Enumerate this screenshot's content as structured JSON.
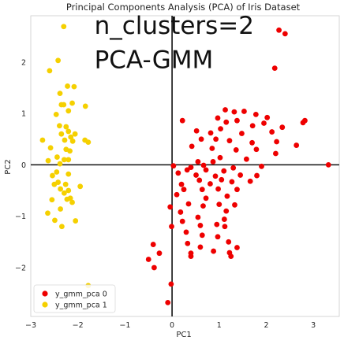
{
  "chart_data": {
    "type": "scatter",
    "title": "Principal Components Analysis (PCA) of Iris Dataset",
    "xlabel": "PC1",
    "ylabel": "PC2",
    "xlim": [
      -3,
      3.55
    ],
    "ylim": [
      -2.95,
      2.9
    ],
    "xticks": [
      -3,
      -2,
      -1,
      0,
      1,
      2,
      3
    ],
    "yticks": [
      -2,
      -1,
      0,
      1,
      2
    ],
    "grid": false,
    "reference_lines": {
      "x": 0,
      "y": 0,
      "color": "#111111"
    },
    "annotations": [
      {
        "text": "n_clusters=2",
        "x": -1.65,
        "y": 2.55
      },
      {
        "text": "PCA-GMM",
        "x": -1.65,
        "y": 1.88
      }
    ],
    "legend_position": "lower-left",
    "series": [
      {
        "name": "y_gmm_pca 0",
        "color": "#ee0000",
        "points": [
          [
            2.27,
            2.62
          ],
          [
            2.4,
            2.55
          ],
          [
            2.18,
            1.88
          ],
          [
            1.13,
            1.07
          ],
          [
            1.32,
            1.03
          ],
          [
            1.53,
            1.04
          ],
          [
            1.78,
            0.98
          ],
          [
            2.02,
            0.92
          ],
          [
            0.97,
            0.91
          ],
          [
            0.22,
            0.86
          ],
          [
            1.15,
            0.83
          ],
          [
            1.38,
            0.86
          ],
          [
            1.71,
            0.76
          ],
          [
            1.95,
            0.81
          ],
          [
            2.34,
            0.73
          ],
          [
            2.78,
            0.82
          ],
          [
            2.82,
            0.86
          ],
          [
            0.52,
            0.66
          ],
          [
            1.03,
            0.7
          ],
          [
            0.82,
            0.62
          ],
          [
            1.48,
            0.61
          ],
          [
            2.12,
            0.64
          ],
          [
            0.62,
            0.5
          ],
          [
            0.93,
            0.5
          ],
          [
            1.22,
            0.47
          ],
          [
            1.7,
            0.43
          ],
          [
            2.22,
            0.45
          ],
          [
            0.42,
            0.36
          ],
          [
            0.85,
            0.32
          ],
          [
            1.36,
            0.29
          ],
          [
            1.79,
            0.3
          ],
          [
            2.64,
            0.38
          ],
          [
            2.2,
            0.22
          ],
          [
            1.02,
            0.14
          ],
          [
            1.58,
            0.11
          ],
          [
            0.55,
            0.06
          ],
          [
            0.87,
            0.06
          ],
          [
            0.03,
            -0.02
          ],
          [
            0.4,
            -0.05
          ],
          [
            0.67,
            -0.01
          ],
          [
            1.3,
            -0.06
          ],
          [
            0.32,
            -0.1
          ],
          [
            0.72,
            -0.1
          ],
          [
            1.1,
            -0.12
          ],
          [
            1.9,
            -0.03
          ],
          [
            0.13,
            -0.16
          ],
          [
            0.51,
            -0.2
          ],
          [
            0.92,
            -0.22
          ],
          [
            1.45,
            -0.2
          ],
          [
            1.8,
            -0.21
          ],
          [
            0.58,
            -0.3
          ],
          [
            1.05,
            -0.29
          ],
          [
            0.2,
            -0.38
          ],
          [
            0.81,
            -0.37
          ],
          [
            1.27,
            -0.33
          ],
          [
            1.66,
            -0.32
          ],
          [
            0.25,
            -0.48
          ],
          [
            0.64,
            -0.48
          ],
          [
            0.98,
            -0.47
          ],
          [
            1.38,
            -0.48
          ],
          [
            0.1,
            -0.58
          ],
          [
            0.72,
            -0.65
          ],
          [
            1.17,
            -0.61
          ],
          [
            -0.04,
            -0.82
          ],
          [
            0.35,
            -0.76
          ],
          [
            0.66,
            -0.8
          ],
          [
            1.0,
            -0.77
          ],
          [
            1.33,
            -0.78
          ],
          [
            0.18,
            -0.92
          ],
          [
            1.15,
            -0.9
          ],
          [
            0.55,
            -1.02
          ],
          [
            1.11,
            -1.06
          ],
          [
            0.22,
            -1.1
          ],
          [
            0.95,
            -1.16
          ],
          [
            0.6,
            -1.18
          ],
          [
            -0.01,
            -1.2
          ],
          [
            1.12,
            -1.2
          ],
          [
            0.3,
            -1.31
          ],
          [
            0.64,
            -1.37
          ],
          [
            0.33,
            -1.53
          ],
          [
            0.97,
            -1.4
          ],
          [
            -0.4,
            -1.55
          ],
          [
            0.6,
            -1.6
          ],
          [
            1.2,
            -1.5
          ],
          [
            1.38,
            -1.61
          ],
          [
            0.4,
            -1.72
          ],
          [
            0.88,
            -1.68
          ],
          [
            -0.27,
            -1.72
          ],
          [
            1.22,
            -1.71
          ],
          [
            1.25,
            -1.78
          ],
          [
            0.4,
            -1.78
          ],
          [
            -0.5,
            -1.84
          ],
          [
            -0.38,
            -2.0
          ],
          [
            -0.02,
            -2.32
          ],
          [
            -0.09,
            -2.68
          ],
          [
            3.32,
            0.0
          ]
        ]
      },
      {
        "name": "y_gmm_pca 1",
        "color": "#f5d000",
        "points": [
          [
            -2.3,
            2.69
          ],
          [
            -2.42,
            2.03
          ],
          [
            -2.6,
            1.83
          ],
          [
            -2.22,
            1.53
          ],
          [
            -2.08,
            1.52
          ],
          [
            -2.38,
            1.39
          ],
          [
            -2.12,
            1.2
          ],
          [
            -2.35,
            1.17
          ],
          [
            -2.3,
            1.17
          ],
          [
            -1.84,
            1.14
          ],
          [
            -2.2,
            1.05
          ],
          [
            -2.46,
            0.98
          ],
          [
            -2.39,
            0.76
          ],
          [
            -2.25,
            0.74
          ],
          [
            -2.2,
            0.65
          ],
          [
            -2.35,
            0.6
          ],
          [
            -2.06,
            0.6
          ],
          [
            -2.15,
            0.54
          ],
          [
            -1.85,
            0.48
          ],
          [
            -1.78,
            0.44
          ],
          [
            -2.75,
            0.48
          ],
          [
            -2.28,
            0.48
          ],
          [
            -2.11,
            0.46
          ],
          [
            -2.25,
            0.3
          ],
          [
            -2.58,
            0.33
          ],
          [
            -2.17,
            0.27
          ],
          [
            -2.44,
            0.15
          ],
          [
            -2.2,
            0.1
          ],
          [
            -2.29,
            0.1
          ],
          [
            -2.63,
            0.08
          ],
          [
            -2.38,
            0.02
          ],
          [
            -2.45,
            -0.14
          ],
          [
            -2.2,
            -0.18
          ],
          [
            -2.54,
            -0.21
          ],
          [
            -2.42,
            -0.34
          ],
          [
            -2.5,
            -0.38
          ],
          [
            -2.26,
            -0.38
          ],
          [
            -1.95,
            -0.42
          ],
          [
            -2.2,
            -0.5
          ],
          [
            -2.37,
            -0.47
          ],
          [
            -2.29,
            -0.55
          ],
          [
            -2.16,
            -0.65
          ],
          [
            -2.23,
            -0.67
          ],
          [
            -2.55,
            -0.68
          ],
          [
            -2.12,
            -0.73
          ],
          [
            -2.37,
            -0.86
          ],
          [
            -2.64,
            -0.94
          ],
          [
            -2.49,
            -1.08
          ],
          [
            -2.05,
            -1.09
          ],
          [
            -2.34,
            -1.2
          ],
          [
            -1.78,
            -2.35
          ]
        ]
      }
    ]
  }
}
